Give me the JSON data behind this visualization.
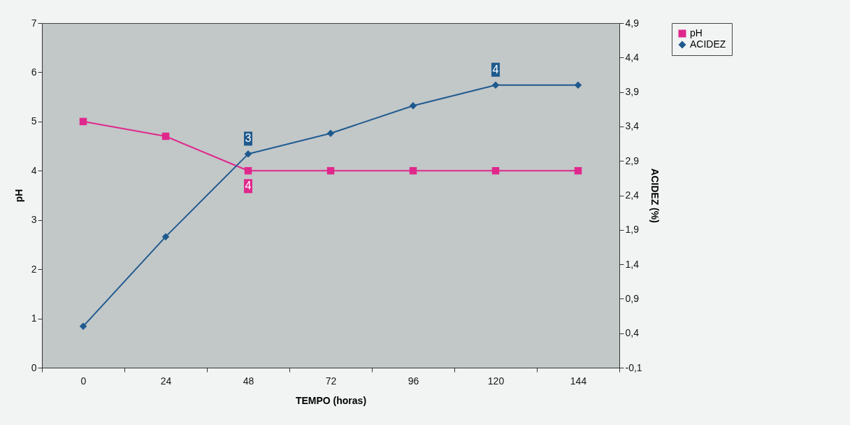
{
  "chart_data": {
    "type": "line",
    "xlabel": "TEMPO (horas)",
    "ylabel": "pH",
    "y2label": "ACIDEZ (%)",
    "categories": [
      "0",
      "24",
      "48",
      "72",
      "96",
      "120",
      "144"
    ],
    "series": [
      {
        "name": "pH",
        "color": "#e0288c",
        "marker": "square",
        "values": [
          5,
          4.7,
          4,
          4,
          4,
          4,
          4
        ],
        "value_labels": [
          null,
          null,
          "4",
          null,
          null,
          null,
          null
        ]
      },
      {
        "name": "ACIDEZ",
        "color": "#1f5a8e",
        "marker": "diamond",
        "axis": "y2",
        "values": [
          0.5,
          1.8,
          3.0,
          3.3,
          3.7,
          4.0,
          4.0
        ],
        "value_labels": [
          null,
          null,
          "3",
          null,
          null,
          "4",
          null
        ]
      }
    ],
    "ylim": [
      0,
      7
    ],
    "yticks": [
      0,
      1,
      2,
      3,
      4,
      5,
      6,
      7
    ],
    "y2lim": [
      -0.1,
      4.9
    ],
    "y2ticks": [
      {
        "value": -0.1,
        "label": "-0,1"
      },
      {
        "value": 0.4,
        "label": "0,4"
      },
      {
        "value": 0.9,
        "label": "0,9"
      },
      {
        "value": 1.4,
        "label": "1,4"
      },
      {
        "value": 1.9,
        "label": "1,9"
      },
      {
        "value": 2.4,
        "label": "2,4"
      },
      {
        "value": 2.9,
        "label": "2,9"
      },
      {
        "value": 3.4,
        "label": "3,4"
      },
      {
        "value": 3.9,
        "label": "3,9"
      },
      {
        "value": 4.4,
        "label": "4,4"
      },
      {
        "value": 4.9,
        "label": "4,9"
      }
    ],
    "legend": "right",
    "line_style": "solid"
  }
}
